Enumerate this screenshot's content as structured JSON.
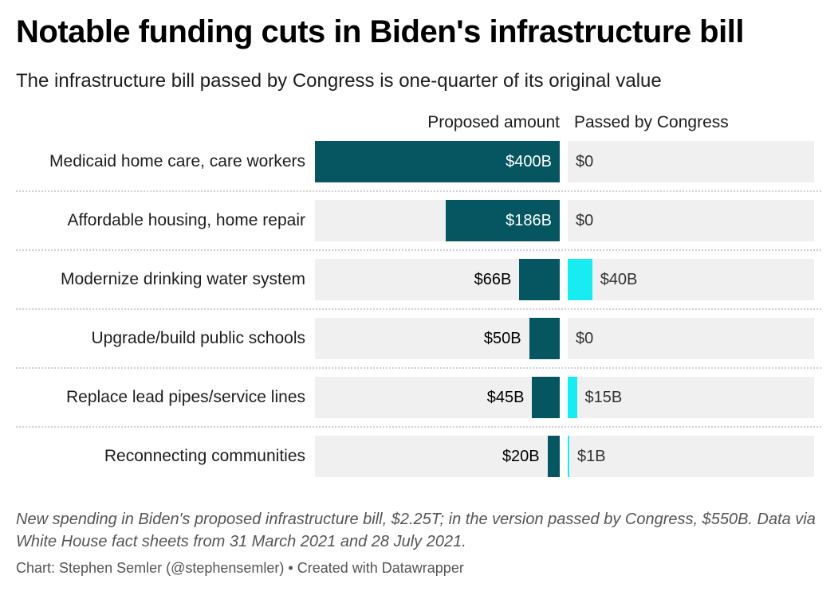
{
  "chart_data": {
    "type": "bar",
    "title": "Notable funding cuts in Biden's infrastructure bill",
    "subtitle": "The infrastructure bill passed by Congress is one-quarter of its original value",
    "categories": [
      "Medicaid home care, care workers",
      "Affordable housing, home repair",
      "Modernize drinking water system",
      "Upgrade/build public schools",
      "Replace lead pipes/service lines",
      "Reconnecting communities"
    ],
    "series": [
      {
        "name": "Proposed amount",
        "values": [
          400,
          186,
          66,
          50,
          45,
          20
        ],
        "labels": [
          "$400B",
          "$186B",
          "$66B",
          "$50B",
          "$45B",
          "$20B"
        ],
        "color": "#055660"
      },
      {
        "name": "Passed by Congress",
        "values": [
          0,
          0,
          40,
          0,
          15,
          1
        ],
        "labels": [
          "$0",
          "$0",
          "$40B",
          "$0",
          "$15B",
          "$1B"
        ],
        "color": "#18ebf2"
      }
    ],
    "xlim": [
      0,
      400
    ],
    "notes": "New spending in Biden's proposed infrastructure bill, $2.25T; in the version passed by Congress, $550B. Data via White House fact sheets from 31 March 2021 and 28 July 2021.",
    "credit": "Chart: Stephen Semler (@stephensemler) • Created with Datawrapper"
  },
  "colors": {
    "proposed": "#055660",
    "passed": "#18ebf2",
    "track": "#f0f0f0"
  }
}
